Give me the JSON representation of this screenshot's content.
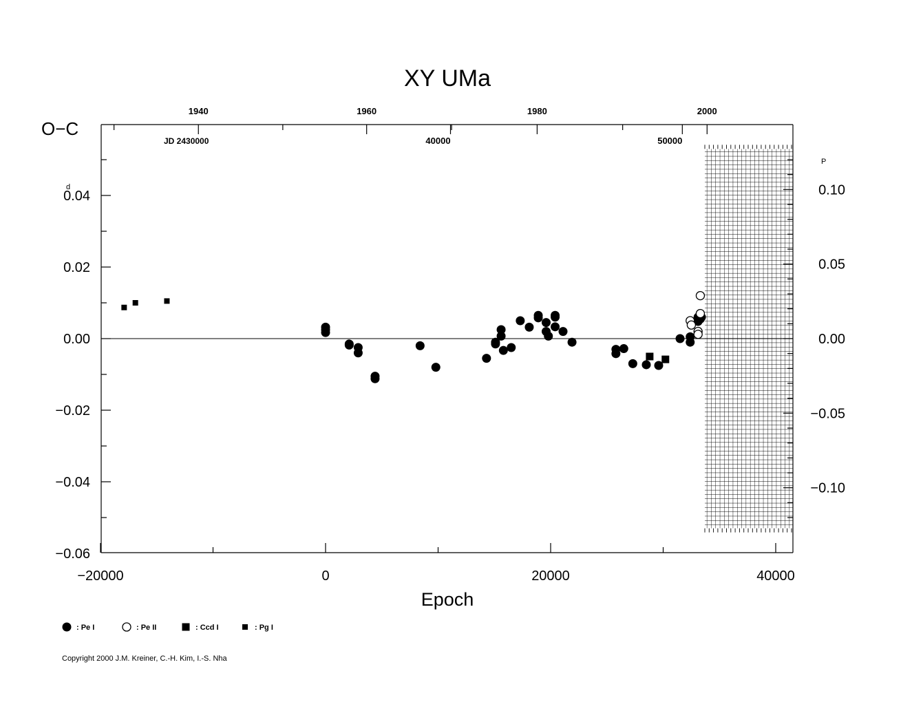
{
  "chart_data": {
    "type": "scatter",
    "title": "XY  UMa",
    "ylabel": "O−C",
    "xlabel": "Epoch",
    "ylabel_unit": "d",
    "right_axis_unit": "P",
    "jd_label": "JD  2430000",
    "copyright": "Copyright 2000 J.M. Kreiner, C.-H. Kim, I.-S. Nha",
    "xlim": [
      -20000,
      41000
    ],
    "ylim": [
      -0.06,
      0.06
    ],
    "x_ticks": [
      -20000,
      0,
      20000,
      40000
    ],
    "x_tick_labels": [
      "−20000",
      "0",
      "20000",
      "40000"
    ],
    "y_ticks": [
      0.04,
      0.02,
      0.0,
      -0.02,
      -0.04,
      -0.06
    ],
    "y_tick_labels": [
      "0.04",
      "0.02",
      "0.00",
      "−0.02",
      "−0.04",
      "−0.06"
    ],
    "right_ticks": [
      0.1,
      0.05,
      0.0,
      -0.05,
      -0.1
    ],
    "right_tick_labels": [
      "0.10",
      "0.05",
      "0.00",
      "−0.05",
      "−0.10"
    ],
    "right_axis_ratio": 2.4,
    "year_ticks": [
      {
        "label": "1940",
        "epoch": -11300
      },
      {
        "label": "1960",
        "epoch": 3650
      },
      {
        "label": "1980",
        "epoch": 18800
      },
      {
        "label": "2000",
        "epoch": 33900
      }
    ],
    "jd_ticks": [
      {
        "label": "40000",
        "epoch": 10000
      },
      {
        "label": "50000",
        "epoch": 30600
      }
    ],
    "hatched_region": {
      "x_from": 33700,
      "x_to": 41000,
      "y_from": -0.053,
      "y_to": 0.053
    },
    "legend": [
      {
        "marker": "filled-circle",
        "label": ": Pe I"
      },
      {
        "marker": "open-circle",
        "label": ": Pe II"
      },
      {
        "marker": "filled-square",
        "label": ": Ccd I"
      },
      {
        "marker": "small-square",
        "label": ": Pg I"
      }
    ],
    "series": [
      {
        "marker": "small-square",
        "points": [
          [
            -17900,
            0.0087
          ],
          [
            -16900,
            0.01
          ],
          [
            -14100,
            0.0105
          ]
        ]
      },
      {
        "marker": "filled-circle",
        "points": [
          [
            0,
            0.0032
          ],
          [
            0,
            0.0025
          ],
          [
            0,
            0.0017
          ],
          [
            2100,
            -0.0015
          ],
          [
            2100,
            -0.0018
          ],
          [
            2900,
            -0.0025
          ],
          [
            2900,
            -0.004
          ],
          [
            4400,
            -0.0105
          ],
          [
            4400,
            -0.0112
          ],
          [
            8400,
            -0.002
          ],
          [
            9800,
            -0.008
          ],
          [
            14300,
            -0.0055
          ],
          [
            15100,
            -0.001
          ],
          [
            15100,
            -0.0015
          ],
          [
            15600,
            0.0025
          ],
          [
            15600,
            0.0007
          ],
          [
            15800,
            -0.0033
          ],
          [
            16500,
            -0.0025
          ],
          [
            17300,
            0.005
          ],
          [
            18100,
            0.0032
          ],
          [
            18900,
            0.0058
          ],
          [
            18900,
            0.0065
          ],
          [
            19600,
            0.0045
          ],
          [
            19600,
            0.002
          ],
          [
            19800,
            0.0007
          ],
          [
            20400,
            0.0065
          ],
          [
            20400,
            0.006
          ],
          [
            20400,
            0.0033
          ],
          [
            21100,
            0.002
          ],
          [
            21900,
            -0.001
          ],
          [
            25800,
            -0.003
          ],
          [
            25800,
            -0.0042
          ],
          [
            26500,
            -0.0028
          ],
          [
            27300,
            -0.007
          ],
          [
            28500,
            -0.0073
          ],
          [
            29600,
            -0.0075
          ],
          [
            31500,
            0.0
          ],
          [
            32400,
            0.0005
          ],
          [
            32400,
            -0.001
          ],
          [
            33100,
            0.006
          ],
          [
            33100,
            0.0048
          ],
          [
            33300,
            0.0055
          ],
          [
            33400,
            0.006
          ]
        ]
      },
      {
        "marker": "open-circle",
        "points": [
          [
            32400,
            0.005
          ],
          [
            32500,
            0.0038
          ],
          [
            33100,
            0.002
          ],
          [
            33100,
            0.0012
          ],
          [
            33300,
            0.007
          ],
          [
            33300,
            0.012
          ]
        ]
      },
      {
        "marker": "filled-square",
        "points": [
          [
            28800,
            -0.005
          ],
          [
            30200,
            -0.0058
          ]
        ]
      }
    ]
  }
}
